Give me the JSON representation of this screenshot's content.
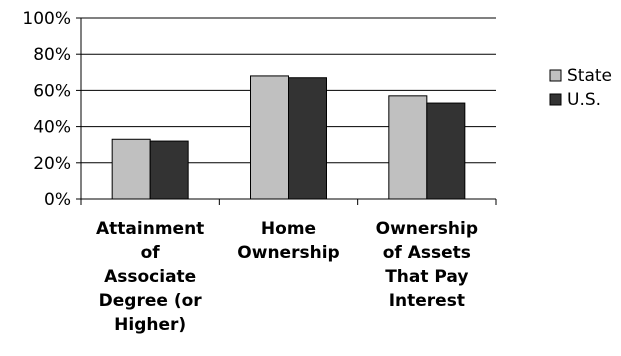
{
  "chart_data": {
    "type": "bar",
    "title": "",
    "xlabel": "",
    "ylabel": "",
    "categories": [
      "Attainment of Associate Degree (or Higher)",
      "Home Ownership",
      "Ownership of Assets That Pay Interest"
    ],
    "category_lines": [
      [
        "Attainment",
        "of",
        "Associate",
        "Degree (or",
        "Higher)"
      ],
      [
        "Home",
        "Ownership"
      ],
      [
        "Ownership",
        "of Assets",
        "That Pay",
        "Interest"
      ]
    ],
    "series": [
      {
        "name": "State",
        "values": [
          33,
          68,
          57
        ],
        "color": "#c0c0c0"
      },
      {
        "name": "U.S.",
        "values": [
          32,
          67,
          53
        ],
        "color": "#333333"
      }
    ],
    "ylim": [
      0,
      100
    ],
    "yticks": [
      0,
      20,
      40,
      60,
      80,
      100
    ],
    "ytick_labels": [
      "0%",
      "20%",
      "40%",
      "60%",
      "80%",
      "100%"
    ],
    "grid": true,
    "legend_position": "right"
  }
}
